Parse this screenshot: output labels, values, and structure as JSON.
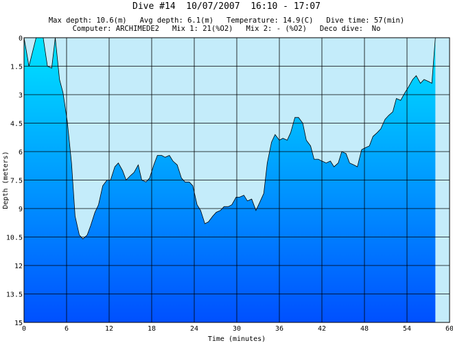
{
  "title": "Dive #14  10/07/2007  16:10 - 17:07",
  "info_line1": "Max depth: 10.6(m)   Avg depth: 6.1(m)   Temperature: 14.9(C)   Dive time: 57(min)",
  "info_line2": "Computer: ARCHIMEDE2   Mix 1: 21(%O2)   Mix 2: - (%O2)   Deco dive:  No",
  "colors": {
    "sky": "#c4ecfa",
    "water_top": "#00e4ff",
    "water_bottom": "#0050ff",
    "grid": "#000000"
  },
  "chart_data": {
    "type": "area",
    "xlabel": "Time (minutes)",
    "ylabel": "Depth (meters)",
    "xlim": [
      0,
      60
    ],
    "ylim": [
      0,
      15
    ],
    "y_inverted": true,
    "grid": true,
    "x_ticks": [
      0,
      6,
      12,
      18,
      24,
      30,
      36,
      42,
      48,
      54,
      60
    ],
    "y_ticks": [
      "0",
      "1.5",
      "3",
      "4.5",
      "6",
      "7.5",
      "9",
      "10.5",
      "12",
      "13.5",
      "15"
    ],
    "series": [
      {
        "x": [
          0,
          0.7,
          1.7,
          2.7,
          3.3,
          3.9,
          4.4,
          5.0,
          5.5,
          6.1,
          6.7,
          7.2,
          7.8,
          8.3,
          8.9,
          9.4,
          10.0,
          10.5,
          11.1,
          11.7,
          12.2,
          12.8,
          13.3,
          13.9,
          14.4,
          14.9,
          15.5,
          16.1,
          16.6,
          17.2,
          17.7,
          18.3,
          18.8,
          19.4,
          19.9,
          20.5,
          21.0,
          21.6,
          22.2,
          22.7,
          23.3,
          23.8,
          24.4,
          24.9,
          25.5,
          26.0,
          26.6,
          27.1,
          27.7,
          28.2,
          28.8,
          29.3,
          29.9,
          30.4,
          31.0,
          31.5,
          32.1,
          32.7,
          33.2,
          33.8,
          34.3,
          34.9,
          35.4,
          36.0,
          36.5,
          37.1,
          37.6,
          38.2,
          38.7,
          39.3,
          39.8,
          40.4,
          40.9,
          41.5,
          42.0,
          42.6,
          43.2,
          43.7,
          44.3,
          44.8,
          45.4,
          45.9,
          46.5,
          47.0,
          47.6,
          48.1,
          48.7,
          49.2,
          49.8,
          50.3,
          50.9,
          51.4,
          52.0,
          52.5,
          53.1,
          53.7,
          54.2,
          54.8,
          55.3,
          55.9,
          56.4,
          57.0,
          57.5,
          58.0
        ],
        "y": [
          0,
          1.5,
          0,
          0,
          1.5,
          1.6,
          0,
          2.2,
          2.9,
          4.4,
          6.6,
          9.4,
          10.4,
          10.6,
          10.4,
          9.9,
          9.2,
          8.8,
          7.8,
          7.5,
          7.5,
          6.8,
          6.6,
          7.0,
          7.5,
          7.3,
          7.1,
          6.7,
          7.5,
          7.6,
          7.4,
          6.7,
          6.2,
          6.2,
          6.3,
          6.2,
          6.5,
          6.7,
          7.4,
          7.6,
          7.6,
          7.8,
          8.8,
          9.1,
          9.8,
          9.7,
          9.4,
          9.2,
          9.1,
          8.9,
          8.9,
          8.8,
          8.4,
          8.4,
          8.3,
          8.6,
          8.5,
          9.1,
          8.7,
          8.2,
          6.6,
          5.5,
          5.1,
          5.4,
          5.3,
          5.4,
          5.0,
          4.2,
          4.2,
          4.5,
          5.4,
          5.7,
          6.4,
          6.4,
          6.5,
          6.6,
          6.5,
          6.8,
          6.6,
          6.0,
          6.1,
          6.6,
          6.7,
          6.8,
          5.9,
          5.8,
          5.7,
          5.2,
          5.0,
          4.8,
          4.3,
          4.1,
          3.9,
          3.2,
          3.3,
          2.9,
          2.6,
          2.2,
          2.0,
          2.4,
          2.2,
          2.3,
          2.4,
          0
        ]
      }
    ]
  }
}
